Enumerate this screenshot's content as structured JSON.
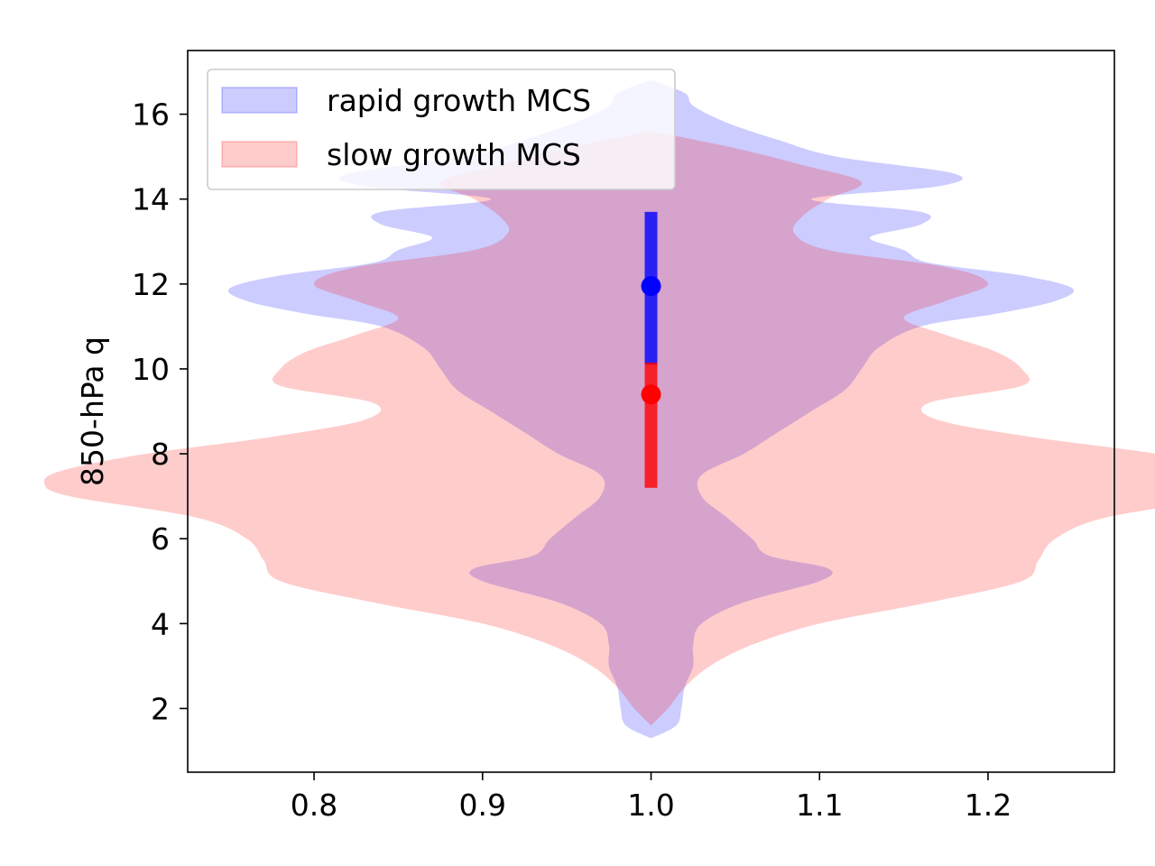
{
  "chart_data": {
    "type": "violin",
    "title": "",
    "xlabel": "",
    "ylabel": "850-hPa q",
    "xlim": [
      0.725,
      1.275
    ],
    "ylim": [
      0.5,
      17.5
    ],
    "xticks": [
      0.8,
      0.9,
      1.0,
      1.1,
      1.2
    ],
    "xtick_labels": [
      "0.8",
      "0.9",
      "1.0",
      "1.1",
      "1.2"
    ],
    "yticks": [
      2,
      4,
      6,
      8,
      10,
      12,
      14,
      16
    ],
    "ytick_labels": [
      "2",
      "4",
      "6",
      "8",
      "10",
      "12",
      "14",
      "16"
    ],
    "grid": false,
    "legend_position": "top-left",
    "series": [
      {
        "name": "rapid growth MCS",
        "position": 1.0,
        "color": "#0000ff",
        "fill_alpha": 0.2,
        "median": 11.95,
        "iqr": [
          10.1,
          13.7
        ],
        "profile_y": [
          1.3,
          1.6,
          2.0,
          2.5,
          3.0,
          3.5,
          4.0,
          4.5,
          5.0,
          5.3,
          5.6,
          6.0,
          6.5,
          7.0,
          7.5,
          8.0,
          8.5,
          9.0,
          9.5,
          10.0,
          10.5,
          11.0,
          11.3,
          11.6,
          11.9,
          12.2,
          12.5,
          12.8,
          13.1,
          13.4,
          13.7,
          14.0,
          14.3,
          14.6,
          15.0,
          15.4,
          15.8,
          16.2,
          16.5,
          16.8
        ],
        "profile_halfwidth": [
          0.0,
          0.015,
          0.018,
          0.02,
          0.025,
          0.025,
          0.03,
          0.055,
          0.1,
          0.105,
          0.07,
          0.06,
          0.045,
          0.03,
          0.03,
          0.055,
          0.075,
          0.095,
          0.115,
          0.125,
          0.135,
          0.16,
          0.205,
          0.24,
          0.25,
          0.22,
          0.165,
          0.15,
          0.13,
          0.16,
          0.16,
          0.095,
          0.17,
          0.18,
          0.11,
          0.075,
          0.045,
          0.025,
          0.02,
          0.0
        ]
      },
      {
        "name": "slow growth MCS",
        "position": 1.0,
        "color": "#ff0000",
        "fill_alpha": 0.2,
        "median": 9.4,
        "iqr": [
          7.2,
          10.15
        ],
        "profile_y": [
          1.6,
          2.0,
          2.5,
          3.0,
          3.5,
          4.0,
          4.5,
          5.0,
          5.5,
          6.0,
          6.5,
          7.0,
          7.3,
          7.6,
          8.0,
          8.4,
          8.8,
          9.2,
          9.6,
          10.0,
          10.4,
          10.8,
          11.2,
          11.6,
          12.0,
          12.4,
          12.8,
          13.2,
          13.6,
          14.0,
          14.4,
          14.8,
          15.2,
          15.6
        ],
        "profile_halfwidth": [
          0.0,
          0.01,
          0.02,
          0.035,
          0.06,
          0.1,
          0.165,
          0.22,
          0.23,
          0.24,
          0.27,
          0.345,
          0.36,
          0.35,
          0.3,
          0.225,
          0.17,
          0.165,
          0.22,
          0.22,
          0.205,
          0.175,
          0.15,
          0.175,
          0.2,
          0.175,
          0.105,
          0.085,
          0.09,
          0.105,
          0.125,
          0.09,
          0.05,
          0.0
        ]
      }
    ]
  }
}
